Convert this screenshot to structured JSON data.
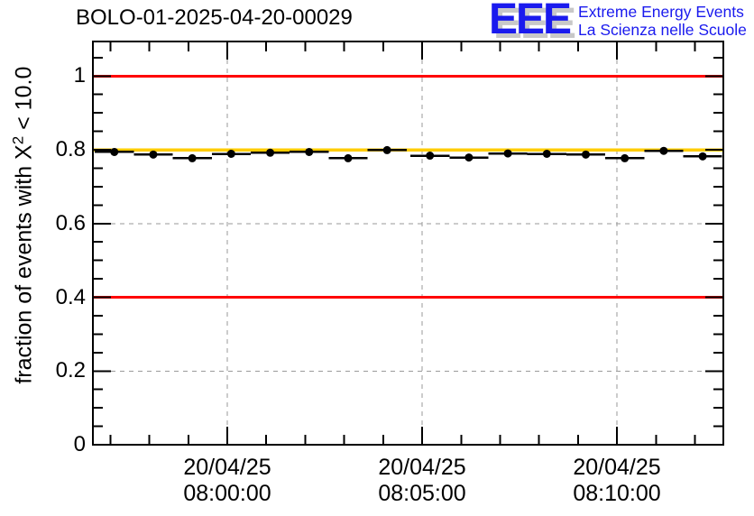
{
  "header": {
    "title": "BOLO-01-2025-04-20-00029"
  },
  "logo": {
    "eee": "EEE",
    "line1": "Extreme Energy Events",
    "line2": "La Scienza nelle Scuole",
    "color": "#1a1aee",
    "shadow_color": "#c8c8c8"
  },
  "chart_data": {
    "type": "scatter",
    "title": "BOLO-01-2025-04-20-00029",
    "ylabel": {
      "pre": "fraction of events with X",
      "sup": "2",
      "post": " < 10.0"
    },
    "x_axis": {
      "unit": "minutes relative to 20/04/25 08:00:00",
      "range": [
        -3.45,
        12.73
      ],
      "major_ticks": [
        0,
        5,
        10
      ],
      "major_tick_labels": [
        [
          "20/04/25",
          "08:00:00"
        ],
        [
          "20/04/25",
          "08:05:00"
        ],
        [
          "20/04/25",
          "08:10:00"
        ]
      ],
      "minor_tick_step": 1
    },
    "y_axis": {
      "range": [
        0,
        1.0936
      ],
      "major_ticks": [
        0,
        0.2,
        0.4,
        0.6,
        0.8,
        1
      ],
      "major_tick_labels": [
        "0",
        "0.2",
        "0.4",
        "0.6",
        "0.8",
        "1"
      ],
      "minor_tick_step": 0.05
    },
    "grid": {
      "vertical_at": [
        0,
        5,
        10
      ],
      "horizontal_at": [
        0.2,
        0.4,
        0.6,
        0.8,
        1.0
      ],
      "style": "dashed",
      "color": "#9a9a9a"
    },
    "reference_lines": [
      {
        "y": 1.0,
        "color": "#ff0000",
        "width": 3
      },
      {
        "y": 0.8,
        "color": "#ffcc00",
        "width": 3.5
      },
      {
        "y": 0.4,
        "color": "#ff0000",
        "width": 3
      }
    ],
    "series": [
      {
        "name": "fraction-of-events-chi2-lt-10",
        "marker": "filled-circle",
        "color": "#000000",
        "x": [
          -2.9,
          -1.9,
          -0.9,
          0.1,
          1.1,
          2.1,
          3.1,
          4.1,
          5.2,
          6.2,
          7.2,
          8.2,
          9.2,
          10.2,
          11.2,
          12.2
        ],
        "y": [
          0.794,
          0.787,
          0.777,
          0.789,
          0.792,
          0.794,
          0.777,
          0.799,
          0.784,
          0.779,
          0.79,
          0.789,
          0.787,
          0.777,
          0.797,
          0.782
        ],
        "x_err": 0.5,
        "y_err": 0.008
      }
    ]
  }
}
